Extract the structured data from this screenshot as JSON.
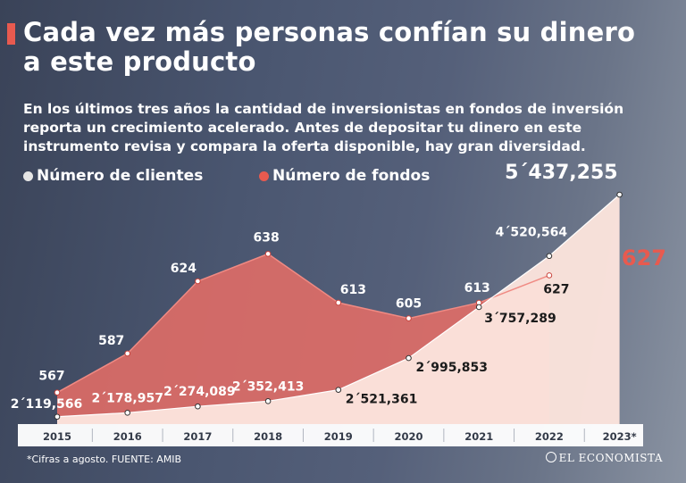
{
  "header": {
    "title": "Cada vez más personas confían su dinero a este producto",
    "subtitle": "En los últimos tres años la cantidad de inversionistas en fondos de inversión reporta un crecimiento acelerado. Antes de depositar tu dinero en este instrumento revisa y compara la oferta disponible, hay gran diversidad."
  },
  "legend": {
    "clients": "Número de clientes",
    "funds": "Número de fondos"
  },
  "footer": {
    "note": "*Cifras a agosto. FUENTE: AMIB",
    "brand": "EL ECONOMISTA"
  },
  "colors": {
    "accent": "#e85a4f",
    "funds_area": "#e46d66",
    "clients_area": "#fbe3dc",
    "background": "#4a5670"
  },
  "chart_data": {
    "type": "area",
    "categories": [
      "2015",
      "2016",
      "2017",
      "2018",
      "2019",
      "2020",
      "2021",
      "2022",
      "2023*"
    ],
    "series": [
      {
        "name": "Número de fondos",
        "values": [
          567,
          587,
          624,
          638,
          613,
          605,
          613,
          627,
          627
        ],
        "labels": [
          "567",
          "587",
          "624",
          "638",
          "613",
          "605",
          "613",
          "627",
          "627"
        ]
      },
      {
        "name": "Número de clientes",
        "values": [
          2119566,
          2178957,
          2274089,
          2352413,
          2521361,
          2995853,
          3757289,
          4520564,
          5437255
        ],
        "labels": [
          "2´119,566",
          "2´178,957",
          "2´274,089",
          "2´352,413",
          "2´521,361",
          "2´995,853",
          "3´757,289",
          "4´520,564",
          "5´437,255"
        ]
      }
    ],
    "title": "Cada vez más personas confían su dinero a este producto",
    "xlabel": "",
    "ylabel": "",
    "footnote": "*Cifras a agosto"
  }
}
